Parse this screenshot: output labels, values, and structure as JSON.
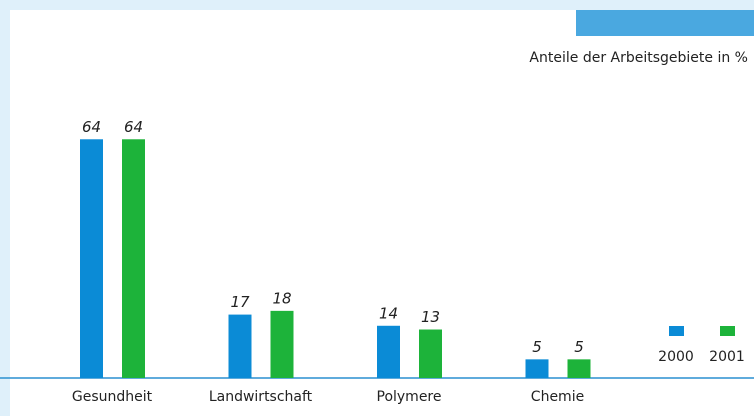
{
  "chart_data": {
    "type": "bar",
    "subtitle": "Anteile der Arbeitsgebiete in %",
    "categories": [
      "Gesundheit",
      "Landwirtschaft",
      "Polymere",
      "Chemie"
    ],
    "series": [
      {
        "name": "2000",
        "color": "#0b8bd6",
        "values": [
          64,
          17,
          14,
          5
        ]
      },
      {
        "name": "2001",
        "color": "#1db33a",
        "values": [
          64,
          18,
          13,
          5
        ]
      }
    ]
  }
}
